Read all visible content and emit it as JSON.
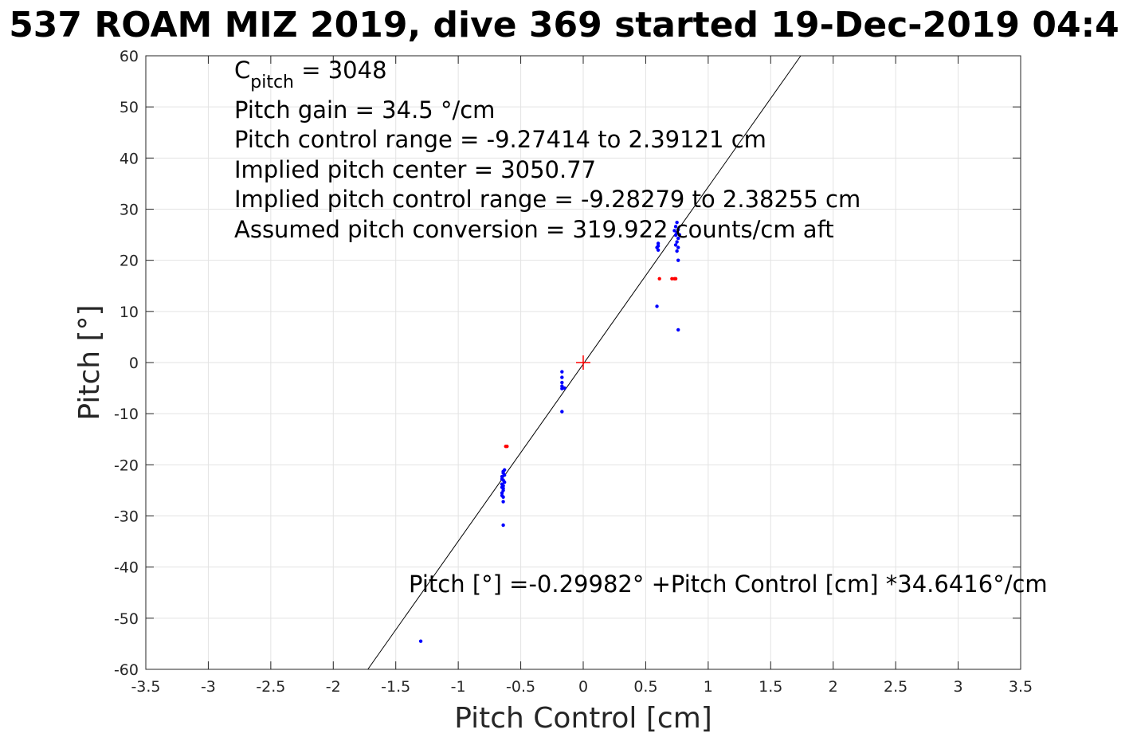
{
  "chart_data": {
    "type": "scatter",
    "title": "537 ROAM MIZ 2019, dive 369 started 19-Dec-2019 04:4",
    "xlabel": "Pitch Control [cm]",
    "ylabel": "Pitch [°]",
    "xlim": [
      -3.5,
      3.5
    ],
    "ylim": [
      -60,
      60
    ],
    "xticks": [
      -3.5,
      -3,
      -2.5,
      -2,
      -1.5,
      -1,
      -0.5,
      0,
      0.5,
      1,
      1.5,
      2,
      2.5,
      3,
      3.5
    ],
    "xtick_labels": [
      "-3.5",
      "-3",
      "-2.5",
      "-2",
      "-1.5",
      "-1",
      "-0.5",
      "0",
      "0.5",
      "1",
      "1.5",
      "2",
      "2.5",
      "3",
      "3.5"
    ],
    "yticks": [
      -60,
      -50,
      -40,
      -30,
      -20,
      -10,
      0,
      10,
      20,
      30,
      40,
      50,
      60
    ],
    "ytick_labels": [
      "-60",
      "-50",
      "-40",
      "-30",
      "-20",
      "-10",
      "0",
      "10",
      "20",
      "30",
      "40",
      "50",
      "60"
    ],
    "grid": true,
    "colors": {
      "points": "#0000ff",
      "flagged": "#ff0000",
      "fit": "#000000",
      "center": "#ff0000"
    },
    "fit_line": {
      "intercept": -0.29982,
      "slope": 34.6416
    },
    "center_marker": {
      "x": 0,
      "y": 0
    },
    "series": [
      {
        "color": "#0000ff",
        "points": [
          [
            -1.3,
            -54.5
          ],
          [
            -0.64,
            -31.8
          ],
          [
            -0.64,
            -27.2
          ],
          [
            -0.64,
            -26.3
          ],
          [
            -0.65,
            -25.5
          ],
          [
            -0.64,
            -24.6
          ],
          [
            -0.65,
            -23.8
          ],
          [
            -0.64,
            -23.0
          ],
          [
            -0.65,
            -22.3
          ],
          [
            -0.64,
            -21.6
          ],
          [
            -0.63,
            -21.0
          ],
          [
            -0.65,
            -22.8
          ],
          [
            -0.64,
            -24.1
          ],
          [
            -0.64,
            -25.0
          ],
          [
            -0.65,
            -26.0
          ],
          [
            -0.63,
            -22.0
          ],
          [
            -0.64,
            -21.3
          ],
          [
            -0.65,
            -24.4
          ],
          [
            -0.63,
            -23.4
          ],
          [
            -0.17,
            -1.8
          ],
          [
            -0.17,
            -2.9
          ],
          [
            -0.17,
            -3.9
          ],
          [
            -0.17,
            -4.6
          ],
          [
            -0.17,
            -5.1
          ],
          [
            -0.15,
            -5.0
          ],
          [
            -0.17,
            -9.6
          ],
          [
            0.59,
            11.0
          ],
          [
            0.6,
            22.0
          ],
          [
            0.6,
            22.8
          ],
          [
            0.6,
            23.3
          ],
          [
            0.59,
            22.5
          ],
          [
            0.75,
            27.4
          ],
          [
            0.74,
            26.6
          ],
          [
            0.76,
            26.0
          ],
          [
            0.75,
            25.4
          ],
          [
            0.74,
            24.9
          ],
          [
            0.76,
            24.3
          ],
          [
            0.75,
            23.6
          ],
          [
            0.74,
            23.0
          ],
          [
            0.76,
            22.5
          ],
          [
            0.75,
            21.8
          ],
          [
            0.76,
            20.0
          ],
          [
            0.76,
            6.4
          ],
          [
            0.73,
            25.8
          ],
          [
            0.77,
            25.0
          ]
        ]
      },
      {
        "color": "#ff0000",
        "points": [
          [
            -0.61,
            -16.4
          ],
          [
            -0.62,
            -16.4
          ],
          [
            0.61,
            16.4
          ],
          [
            0.71,
            16.4
          ],
          [
            0.73,
            16.4
          ],
          [
            0.74,
            16.4
          ]
        ]
      }
    ],
    "annotations": {
      "params_line1_main": "C",
      "params_line1_sub": "pitch",
      "params_line1_rest": " = 3048",
      "params_line2": "Pitch gain = 34.5 °/cm",
      "params_line3": "Pitch control range = -9.27414 to 2.39121 cm",
      "params_line4": "Implied pitch center = 3050.77",
      "params_line5": "Implied pitch control range = -9.28279 to 2.38255 cm",
      "params_line6": "Assumed pitch conversion = 319.922 counts/cm aft",
      "equation": "Pitch [°] =-0.29982° +Pitch Control [cm] *34.6416°/cm"
    }
  }
}
